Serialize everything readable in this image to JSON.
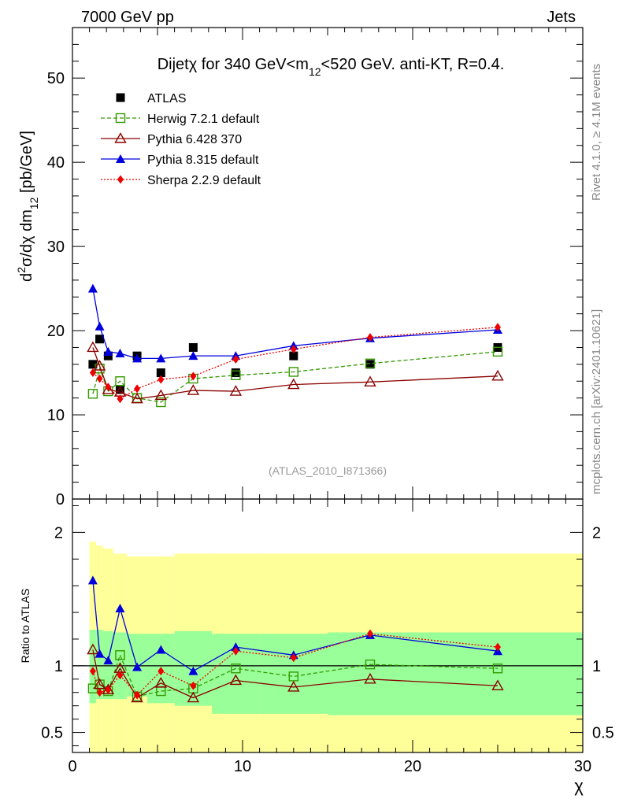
{
  "header": {
    "left": "7000 GeV pp",
    "right": "Jets"
  },
  "side_labels": {
    "rivet": "Rivet 4.1.0, ≥ 4.1M events",
    "mcplots": "mcplots.cern.ch [arXiv:2401.10621]"
  },
  "colors": {
    "atlas": "#000000",
    "herwig": "#339900",
    "pythia6": "#8b0000",
    "pythia8": "#0000dd",
    "sherpa": "#ee0000",
    "band_inner": "#99ff99",
    "band_outer": "#ffff99"
  },
  "chart_data": [
    {
      "type": "line",
      "title": "Dijet χ for 340 GeV<m12<520 GeV.  anti-KT, R=0.4.",
      "title_parts": [
        "Dijet",
        "χ",
        " for 340 GeV<m",
        "12",
        "<520 GeV.  anti-KT, R=0.4."
      ],
      "ylabel": "d²σ/dχ dm12 [pb/GeV]",
      "xlabel": "χ",
      "xlim": [
        0,
        30
      ],
      "ylim": [
        0,
        56
      ],
      "yticks": [
        0,
        10,
        20,
        30,
        40,
        50
      ],
      "ytick_labels": [
        "0",
        "10",
        "20",
        "30",
        "40",
        "50"
      ],
      "analysis_label": "(ATLAS_2010_I871366)",
      "legend_position": "top-left",
      "x": [
        1.2,
        1.6,
        2.1,
        2.8,
        3.8,
        5.2,
        7.1,
        9.6,
        13.0,
        17.5,
        25.0
      ],
      "series": [
        {
          "name": "ATLAS",
          "key": "atlas",
          "marker": "square-filled",
          "line": "none",
          "values": [
            16.0,
            19.0,
            17.0,
            13.0,
            17.0,
            15.0,
            18.0,
            15.0,
            17.0,
            16.0,
            18.0
          ]
        },
        {
          "name": "Herwig 7.2.1 default",
          "key": "herwig",
          "marker": "square-open",
          "line": "dashed",
          "values": [
            12.5,
            15.5,
            12.8,
            14.0,
            12.0,
            11.5,
            14.3,
            14.7,
            15.1,
            16.1,
            17.5
          ]
        },
        {
          "name": "Pythia 6.428 370",
          "key": "pythia6",
          "marker": "triangle-open",
          "line": "solid",
          "values": [
            18.0,
            15.8,
            13.0,
            12.7,
            11.9,
            12.3,
            12.9,
            12.8,
            13.6,
            13.9,
            14.6
          ]
        },
        {
          "name": "Pythia 8.315 default",
          "key": "pythia8",
          "marker": "triangle-filled",
          "line": "solid",
          "values": [
            25.0,
            20.5,
            17.5,
            17.3,
            16.7,
            16.7,
            17.0,
            17.0,
            18.2,
            19.1,
            20.1
          ]
        },
        {
          "name": "Sherpa 2.2.9 default",
          "key": "sherpa",
          "marker": "diamond-filled",
          "line": "dotted",
          "values": [
            15.0,
            14.3,
            13.3,
            11.9,
            13.1,
            14.2,
            14.6,
            16.6,
            17.8,
            19.2,
            20.4
          ]
        }
      ]
    },
    {
      "type": "line",
      "title": "",
      "ylabel": "Ratio to ATLAS",
      "xlabel": "χ",
      "xlim": [
        0,
        30
      ],
      "ylim": [
        0.35,
        2.25
      ],
      "yticks": [
        0.5,
        1,
        2
      ],
      "ytick_labels": [
        "0.5",
        "1",
        "2"
      ],
      "xticks": [
        0,
        10,
        20,
        30
      ],
      "xtick_labels": [
        "0",
        "10",
        "20",
        "30"
      ],
      "reference": 1.0,
      "x": [
        1.2,
        1.6,
        2.1,
        2.8,
        3.8,
        5.2,
        7.1,
        9.6,
        13.0,
        17.5,
        25.0
      ],
      "series": [
        {
          "name": "Herwig 7.2.1 default",
          "key": "herwig",
          "marker": "square-open",
          "line": "dashed",
          "values": [
            0.83,
            0.86,
            0.81,
            1.08,
            0.77,
            0.81,
            0.83,
            0.98,
            0.92,
            1.01,
            0.98
          ]
        },
        {
          "name": "Pythia 6.428 370",
          "key": "pythia6",
          "marker": "triangle-open",
          "line": "solid",
          "values": [
            1.12,
            0.86,
            0.82,
            0.98,
            0.76,
            0.87,
            0.76,
            0.89,
            0.84,
            0.9,
            0.85
          ]
        },
        {
          "name": "Pythia 8.315 default",
          "key": "pythia8",
          "marker": "triangle-filled",
          "line": "solid",
          "values": [
            1.64,
            1.09,
            1.04,
            1.43,
            0.99,
            1.12,
            0.96,
            1.14,
            1.08,
            1.23,
            1.11
          ]
        },
        {
          "name": "Sherpa 2.2.9 default",
          "key": "sherpa",
          "marker": "diamond-filled",
          "line": "dotted",
          "values": [
            0.96,
            0.8,
            0.82,
            0.93,
            0.78,
            0.96,
            0.85,
            1.11,
            1.06,
            1.24,
            1.14
          ]
        }
      ],
      "band_edges": [
        1.0,
        1.4,
        1.8,
        2.4,
        3.2,
        4.4,
        6.0,
        8.2,
        11.0,
        15.0,
        20.0,
        30.0
      ],
      "band_inner": {
        "lo": [
          0.72,
          0.75,
          0.75,
          0.75,
          0.77,
          0.72,
          0.7,
          0.64,
          0.64,
          0.63,
          0.63
        ],
        "hi": [
          1.27,
          1.27,
          1.26,
          1.25,
          1.24,
          1.24,
          1.26,
          1.24,
          1.24,
          1.25,
          1.25
        ]
      },
      "band_outer": {
        "lo": [
          0.35,
          0.35,
          0.35,
          0.35,
          0.35,
          0.35,
          0.35,
          0.35,
          0.35,
          0.35,
          0.35
        ],
        "hi": [
          1.93,
          1.9,
          1.88,
          1.84,
          1.82,
          1.82,
          1.84,
          1.84,
          1.84,
          1.84,
          1.84
        ]
      }
    }
  ]
}
